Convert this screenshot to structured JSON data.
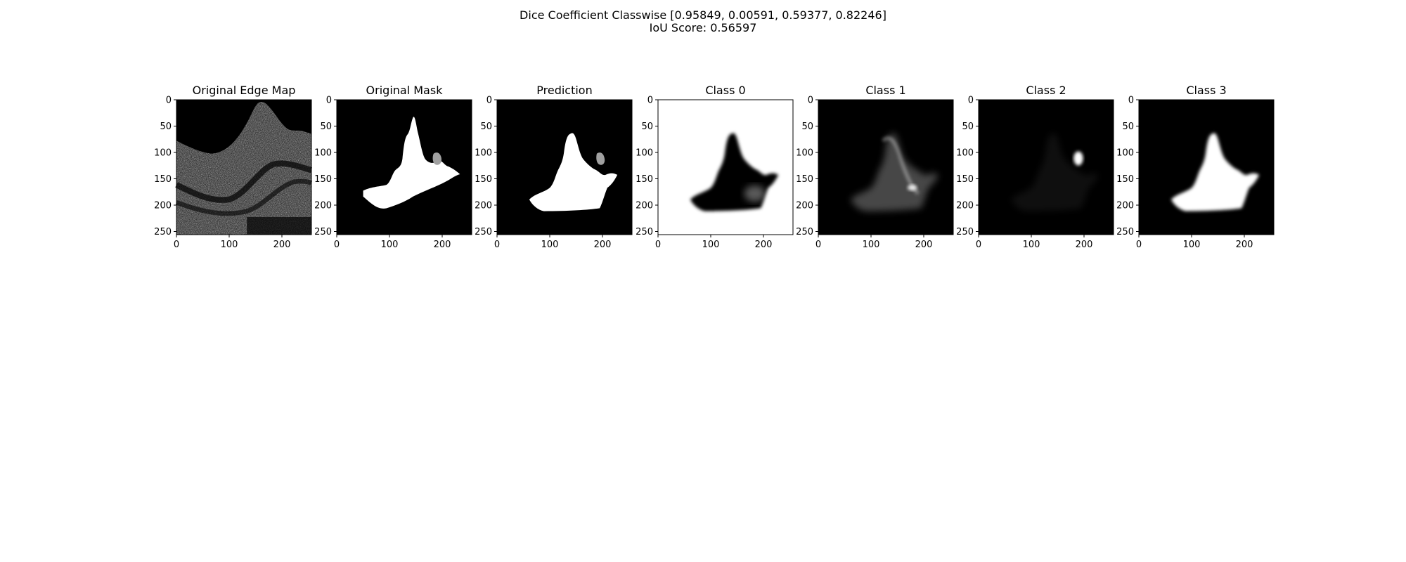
{
  "figure": {
    "suptitle_line1": "Dice Coefficient Classwise [0.95849, 0.00591, 0.59377, 0.82246]",
    "suptitle_line2": "IoU Score: 0.56597"
  },
  "axes": {
    "x_ticks": [
      "0",
      "100",
      "200"
    ],
    "y_ticks": [
      "0",
      "50",
      "100",
      "150",
      "200",
      "250"
    ],
    "x_tick_values": [
      0,
      100,
      200
    ],
    "y_tick_values": [
      0,
      50,
      100,
      150,
      200,
      250
    ],
    "extent": [
      0,
      256
    ]
  },
  "panels": [
    {
      "id": "edge-map",
      "title": "Original Edge Map"
    },
    {
      "id": "original-mask",
      "title": "Original Mask"
    },
    {
      "id": "prediction",
      "title": "Prediction"
    },
    {
      "id": "class-0",
      "title": "Class 0"
    },
    {
      "id": "class-1",
      "title": "Class 1"
    },
    {
      "id": "class-2",
      "title": "Class 2"
    },
    {
      "id": "class-3",
      "title": "Class 3"
    }
  ],
  "colors": {
    "black": "#000000",
    "white": "#ffffff",
    "gray": "#a0a0a0"
  }
}
